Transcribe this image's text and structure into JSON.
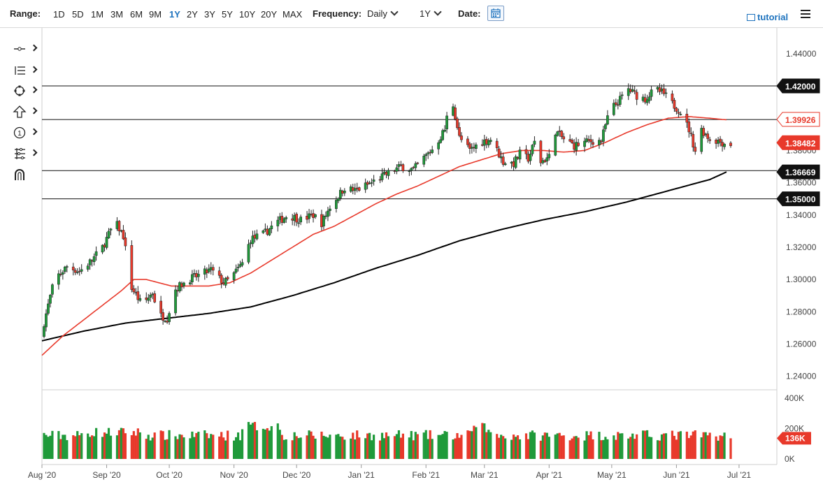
{
  "toolbar": {
    "range_label": "Range:",
    "ranges": [
      "1D",
      "5D",
      "1M",
      "3M",
      "6M",
      "9M",
      "1Y",
      "2Y",
      "3Y",
      "5Y",
      "10Y",
      "20Y",
      "MAX"
    ],
    "active_range": "1Y",
    "frequency_label": "Frequency:",
    "frequency_value": "Daily",
    "period_value": "1Y",
    "date_label": "Date:",
    "tutorial_label": "tutorial"
  },
  "side_tools": [
    "line-tool",
    "fibonacci-tool",
    "shape-tool",
    "arrow-tool",
    "annotation-tool",
    "measure-tool",
    "magnet-tool"
  ],
  "colors": {
    "up": "#1f9a3a",
    "down": "#e8392b",
    "ma50": "#e8392b",
    "ma200": "#000000",
    "accent": "#1e73be"
  },
  "chart_data": {
    "type": "candlestick",
    "frequency": "Daily",
    "ylim": [
      1.2325,
      1.4525
    ],
    "yticks": [
      "1.44000",
      "1.42000",
      "1.40000",
      "1.38000",
      "1.36000",
      "1.34000",
      "1.32000",
      "1.30000",
      "1.28000",
      "1.26000",
      "1.24000"
    ],
    "ytick_values": [
      1.44,
      1.42,
      1.4,
      1.38,
      1.36,
      1.34,
      1.32,
      1.3,
      1.28,
      1.26,
      1.24
    ],
    "xticks": [
      "Aug '20",
      "Sep '20",
      "Oct '20",
      "Nov '20",
      "Dec '20",
      "Jan '21",
      "Feb '21",
      "Mar '21",
      "Apr '21",
      "May '21",
      "Jun '21",
      "Jul '21"
    ],
    "xtick_days": [
      0,
      31,
      61,
      92,
      122,
      153,
      184,
      212,
      243,
      273,
      304,
      334
    ],
    "last_day": 330,
    "hlines": [
      {
        "label": "1.42000",
        "value": 1.42
      },
      {
        "label": "1.35000",
        "value": 1.35
      }
    ],
    "hlines_unlabeled": [
      1.3992,
      1.3675
    ],
    "price_tags": [
      {
        "label": "1.39926",
        "value": 1.39926,
        "kind": "ma50"
      },
      {
        "label": "1.38482",
        "value": 1.38482,
        "kind": "price"
      },
      {
        "label": "1.36669",
        "value": 1.36669,
        "kind": "ma200"
      }
    ],
    "close_path": [
      [
        0,
        1.268
      ],
      [
        6,
        1.3
      ],
      [
        12,
        1.308
      ],
      [
        18,
        1.305
      ],
      [
        24,
        1.312
      ],
      [
        29,
        1.32
      ],
      [
        35,
        1.336
      ],
      [
        39,
        1.327
      ],
      [
        43,
        1.295
      ],
      [
        48,
        1.284
      ],
      [
        53,
        1.292
      ],
      [
        56,
        1.278
      ],
      [
        60,
        1.276
      ],
      [
        64,
        1.294
      ],
      [
        70,
        1.3
      ],
      [
        76,
        1.303
      ],
      [
        81,
        1.306
      ],
      [
        87,
        1.298
      ],
      [
        90,
        1.3
      ],
      [
        96,
        1.31
      ],
      [
        100,
        1.325
      ],
      [
        106,
        1.328
      ],
      [
        112,
        1.335
      ],
      [
        118,
        1.34
      ],
      [
        124,
        1.337
      ],
      [
        130,
        1.34
      ],
      [
        134,
        1.335
      ],
      [
        138,
        1.345
      ],
      [
        145,
        1.357
      ],
      [
        150,
        1.355
      ],
      [
        158,
        1.36
      ],
      [
        166,
        1.366
      ],
      [
        172,
        1.37
      ],
      [
        178,
        1.368
      ],
      [
        182,
        1.374
      ],
      [
        188,
        1.382
      ],
      [
        193,
        1.393
      ],
      [
        196,
        1.415
      ],
      [
        200,
        1.388
      ],
      [
        205,
        1.38
      ],
      [
        210,
        1.385
      ],
      [
        215,
        1.387
      ],
      [
        218,
        1.38
      ],
      [
        221,
        1.373
      ],
      [
        226,
        1.372
      ],
      [
        229,
        1.378
      ],
      [
        233,
        1.375
      ],
      [
        236,
        1.385
      ],
      [
        239,
        1.373
      ],
      [
        243,
        1.376
      ],
      [
        246,
        1.392
      ],
      [
        250,
        1.387
      ],
      [
        255,
        1.383
      ],
      [
        260,
        1.385
      ],
      [
        264,
        1.386
      ],
      [
        268,
        1.386
      ],
      [
        272,
        1.405
      ],
      [
        276,
        1.41
      ],
      [
        281,
        1.418
      ],
      [
        285,
        1.414
      ],
      [
        289,
        1.412
      ],
      [
        294,
        1.418
      ],
      [
        298,
        1.415
      ],
      [
        302,
        1.409
      ],
      [
        306,
        1.404
      ],
      [
        310,
        1.393
      ],
      [
        313,
        1.38
      ],
      [
        316,
        1.393
      ],
      [
        320,
        1.387
      ],
      [
        324,
        1.386
      ],
      [
        328,
        1.384
      ]
    ],
    "ma50_path": [
      [
        0,
        1.253
      ],
      [
        10,
        1.265
      ],
      [
        20,
        1.275
      ],
      [
        30,
        1.285
      ],
      [
        38,
        1.293
      ],
      [
        44,
        1.3
      ],
      [
        50,
        1.3
      ],
      [
        56,
        1.298
      ],
      [
        62,
        1.296
      ],
      [
        70,
        1.296
      ],
      [
        80,
        1.296
      ],
      [
        90,
        1.298
      ],
      [
        100,
        1.304
      ],
      [
        110,
        1.312
      ],
      [
        120,
        1.32
      ],
      [
        130,
        1.328
      ],
      [
        140,
        1.333
      ],
      [
        150,
        1.34
      ],
      [
        160,
        1.347
      ],
      [
        170,
        1.353
      ],
      [
        180,
        1.358
      ],
      [
        190,
        1.364
      ],
      [
        200,
        1.37
      ],
      [
        210,
        1.374
      ],
      [
        220,
        1.378
      ],
      [
        230,
        1.38
      ],
      [
        240,
        1.38
      ],
      [
        250,
        1.379
      ],
      [
        260,
        1.38
      ],
      [
        270,
        1.385
      ],
      [
        280,
        1.391
      ],
      [
        290,
        1.396
      ],
      [
        300,
        1.4
      ],
      [
        310,
        1.401
      ],
      [
        320,
        1.4
      ],
      [
        328,
        1.399
      ]
    ],
    "ma200_path": [
      [
        0,
        1.262
      ],
      [
        20,
        1.268
      ],
      [
        40,
        1.273
      ],
      [
        60,
        1.276
      ],
      [
        80,
        1.279
      ],
      [
        100,
        1.283
      ],
      [
        120,
        1.29
      ],
      [
        140,
        1.298
      ],
      [
        160,
        1.307
      ],
      [
        180,
        1.315
      ],
      [
        200,
        1.324
      ],
      [
        220,
        1.331
      ],
      [
        240,
        1.337
      ],
      [
        260,
        1.342
      ],
      [
        280,
        1.348
      ],
      [
        300,
        1.355
      ],
      [
        320,
        1.362
      ],
      [
        328,
        1.36669
      ]
    ],
    "volume": {
      "ylim": [
        0,
        400
      ],
      "yticks": [
        "400K",
        "200K",
        "0K"
      ],
      "ytick_values": [
        400,
        200,
        0
      ],
      "last_label": "136K",
      "last_value": 136
    }
  }
}
